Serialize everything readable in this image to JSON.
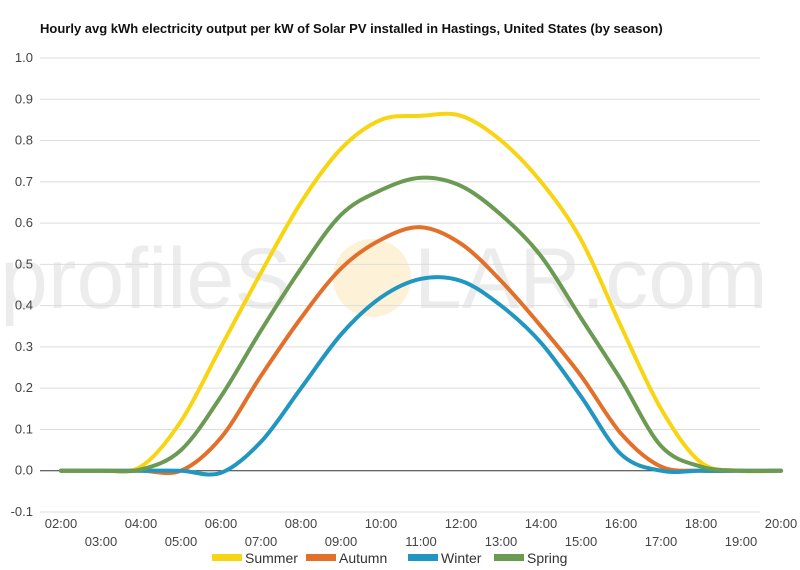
{
  "watermark": {
    "left": "profileS",
    "right": "LAR.com"
  },
  "chart_data": {
    "type": "line",
    "title": "Hourly avg kWh electricity output per kW of Solar PV installed in Hastings, United States (by season)",
    "xlabel": "",
    "ylabel": "",
    "x": [
      2,
      3,
      4,
      5,
      6,
      7,
      8,
      9,
      10,
      11,
      12,
      13,
      14,
      15,
      16,
      17,
      18,
      19,
      20
    ],
    "x_tick_labels": [
      "02:00",
      "03:00",
      "04:00",
      "05:00",
      "06:00",
      "07:00",
      "08:00",
      "09:00",
      "10:00",
      "11:00",
      "12:00",
      "13:00",
      "14:00",
      "15:00",
      "16:00",
      "17:00",
      "18:00",
      "19:00",
      "20:00"
    ],
    "y_ticks": [
      "-0.1",
      "0.0",
      "0.1",
      "0.2",
      "0.3",
      "0.4",
      "0.5",
      "0.6",
      "0.7",
      "0.8",
      "0.9",
      "1.0"
    ],
    "ylim": [
      -0.1,
      1.0
    ],
    "grid": true,
    "legend_position": "bottom",
    "series": [
      {
        "name": "Summer",
        "color": "#f8d512",
        "values": [
          0,
          0,
          0.01,
          0.12,
          0.3,
          0.48,
          0.65,
          0.78,
          0.85,
          0.86,
          0.86,
          0.8,
          0.7,
          0.56,
          0.35,
          0.15,
          0.02,
          0,
          0
        ]
      },
      {
        "name": "Autumn",
        "color": "#e2702a",
        "values": [
          0,
          0,
          0,
          0,
          0.08,
          0.23,
          0.37,
          0.49,
          0.56,
          0.59,
          0.55,
          0.46,
          0.35,
          0.23,
          0.09,
          0.01,
          0,
          0,
          0
        ]
      },
      {
        "name": "Winter",
        "color": "#2196c0",
        "values": [
          0,
          0,
          0,
          0,
          -0.005,
          0.07,
          0.2,
          0.33,
          0.42,
          0.465,
          0.46,
          0.4,
          0.31,
          0.18,
          0.04,
          0,
          0,
          0,
          0
        ]
      },
      {
        "name": "Spring",
        "color": "#6b9a52",
        "values": [
          0,
          0,
          0.003,
          0.05,
          0.18,
          0.34,
          0.49,
          0.62,
          0.68,
          0.71,
          0.69,
          0.62,
          0.52,
          0.37,
          0.22,
          0.06,
          0.01,
          0,
          0
        ]
      }
    ]
  }
}
